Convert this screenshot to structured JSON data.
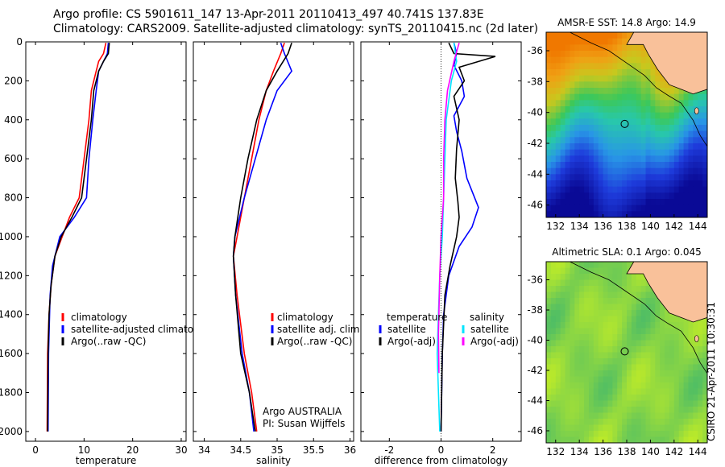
{
  "header": {
    "line1": "Argo profile: CS 5901611_147 13-Apr-2011 20110413_497 40.741S 137.83E",
    "line2": "Climatology: CARS2009. Satellite-adjusted climatology: synTS_20110415.nc (2d later)"
  },
  "side_label": "CSIRO 21-Apr-2011 10:30:31",
  "colors": {
    "climatology": "#ff0000",
    "satellite": "#0000ff",
    "argo": "#000000",
    "satellite_diff": "#00e5ff",
    "argo_diff": "#ff00ff"
  },
  "chart_data": [
    {
      "type": "line",
      "id": "temperature",
      "xlabel": "temperature",
      "ylabel": "",
      "xlim": [
        -2,
        31
      ],
      "ylim": [
        2050,
        0
      ],
      "xticks": [
        0,
        10,
        20,
        30
      ],
      "yticks": [
        0,
        200,
        400,
        600,
        800,
        1000,
        1200,
        1400,
        1600,
        1800,
        2000
      ],
      "legend": [
        "climatology",
        "satellite-adjusted climatology",
        "Argo(..raw -QC)"
      ],
      "series": [
        {
          "name": "climatology",
          "color": "#ff0000",
          "x": [
            14.5,
            14.0,
            13.0,
            12.5,
            11.5,
            11.0,
            10.0,
            9.0,
            7.0,
            5.5,
            4.0,
            3.2,
            2.8,
            2.5,
            2.4
          ],
          "y": [
            5,
            60,
            100,
            150,
            250,
            400,
            600,
            800,
            900,
            1000,
            1100,
            1250,
            1400,
            1600,
            2000
          ]
        },
        {
          "name": "satellite-adjusted climatology",
          "color": "#0000ff",
          "x": [
            15.0,
            14.8,
            14.0,
            13.0,
            12.5,
            11.8,
            11.0,
            10.5,
            8.0,
            5.0,
            3.5,
            3.0,
            2.7,
            2.6
          ],
          "y": [
            5,
            60,
            100,
            150,
            250,
            400,
            600,
            800,
            900,
            1000,
            1150,
            1300,
            1600,
            2000
          ]
        },
        {
          "name": "Argo(..raw -QC)",
          "color": "#000000",
          "x": [
            15.2,
            15.0,
            14.0,
            13.0,
            12.0,
            11.5,
            10.5,
            9.5,
            7.5,
            5.3,
            4.0,
            3.2,
            2.8,
            2.6,
            2.5
          ],
          "y": [
            5,
            60,
            100,
            150,
            250,
            400,
            600,
            800,
            900,
            1000,
            1100,
            1250,
            1400,
            1600,
            2000
          ]
        }
      ]
    },
    {
      "type": "line",
      "id": "salinity",
      "xlabel": "salinity",
      "ylabel": "",
      "xlim": [
        33.85,
        36.05
      ],
      "ylim": [
        2050,
        0
      ],
      "xticks": [
        34,
        34.5,
        35,
        35.5,
        36
      ],
      "xticklabels": [
        "34",
        "34.5",
        "35",
        "35.5",
        "36"
      ],
      "legend": [
        "climatology",
        "satellite adj. clim.",
        "Argo(..raw -QC)"
      ],
      "annotation": [
        "Argo AUSTRALIA",
        "PI: Susan Wijffels"
      ],
      "series": [
        {
          "name": "climatology",
          "color": "#ff0000",
          "x": [
            35.1,
            35.05,
            34.95,
            34.85,
            34.75,
            34.65,
            34.55,
            34.45,
            34.4,
            34.45,
            34.55,
            34.65,
            34.72
          ],
          "y": [
            5,
            60,
            150,
            250,
            400,
            600,
            800,
            1000,
            1100,
            1300,
            1600,
            1800,
            2000
          ]
        },
        {
          "name": "satellite adj. clim.",
          "color": "#0000ff",
          "x": [
            35.05,
            35.1,
            35.2,
            35.0,
            34.85,
            34.7,
            34.55,
            34.42,
            34.4,
            34.43,
            34.52,
            34.62,
            34.68
          ],
          "y": [
            5,
            60,
            150,
            250,
            400,
            600,
            800,
            1000,
            1100,
            1300,
            1600,
            1800,
            2000
          ]
        },
        {
          "name": "Argo(..raw -QC)",
          "color": "#000000",
          "x": [
            35.2,
            35.15,
            35.0,
            34.85,
            34.72,
            34.6,
            34.5,
            34.42,
            34.4,
            34.43,
            34.5,
            34.62,
            34.7
          ],
          "y": [
            5,
            60,
            150,
            250,
            400,
            600,
            800,
            1000,
            1100,
            1300,
            1600,
            1800,
            2000
          ]
        }
      ]
    },
    {
      "type": "line",
      "id": "difference",
      "xlabel": "difference from climatology",
      "ylabel": "",
      "xlim": [
        -3.1,
        3.1
      ],
      "ylim": [
        2050,
        0
      ],
      "xticks": [
        -2,
        0,
        2
      ],
      "legend_groups": [
        {
          "title": "temperature",
          "items": [
            "satellite",
            "Argo(-adj)"
          ]
        },
        {
          "title": "salinity",
          "items": [
            "satellite",
            "Argo(-adj)"
          ]
        }
      ],
      "series": [
        {
          "name": "satellite",
          "group": "temperature",
          "color": "#0000ff",
          "x": [
            0.5,
            0.6,
            0.5,
            0.8,
            0.9,
            0.5,
            0.6,
            0.8,
            1.0,
            1.3,
            1.45,
            1.2,
            0.7,
            0.3,
            0.1,
            0.05,
            0.0
          ],
          "y": [
            5,
            60,
            120,
            200,
            280,
            380,
            460,
            560,
            700,
            800,
            850,
            950,
            1050,
            1200,
            1400,
            1600,
            2000
          ]
        },
        {
          "name": "Argo(-adj)",
          "group": "temperature",
          "color": "#000000",
          "x": [
            0.3,
            0.5,
            2.1,
            0.7,
            0.9,
            0.5,
            0.7,
            0.6,
            0.55,
            0.65,
            0.7,
            0.6,
            0.35,
            0.15,
            0.05,
            0.0
          ],
          "y": [
            5,
            60,
            75,
            130,
            200,
            280,
            400,
            550,
            700,
            820,
            900,
            1000,
            1150,
            1300,
            1600,
            2000
          ]
        },
        {
          "name": "satellite",
          "group": "salinity",
          "color": "#00e5ff",
          "x": [
            0.5,
            0.6,
            0.4,
            0.3,
            0.2,
            0.15,
            0.1,
            0.05,
            -0.05,
            -0.1,
            -0.15,
            -0.1,
            -0.05
          ],
          "y": [
            5,
            100,
            200,
            300,
            400,
            600,
            800,
            1000,
            1200,
            1400,
            1600,
            1800,
            2000
          ]
        },
        {
          "name": "Argo(-adj)",
          "group": "salinity",
          "color": "#ff00ff",
          "x": [
            0.7,
            0.5,
            0.25,
            0.15,
            0.1,
            0.1,
            0.0,
            -0.05,
            -0.1,
            -0.08
          ],
          "y": [
            5,
            100,
            250,
            400,
            600,
            800,
            1000,
            1200,
            1500,
            1700
          ]
        }
      ]
    },
    {
      "type": "heatmap",
      "id": "sst_map",
      "title": "AMSR-E SST: 14.8 Argo: 14.9",
      "xlim": [
        131.2,
        144.8
      ],
      "ylim": [
        -46.8,
        -34.8
      ],
      "xticks": [
        132,
        134,
        136,
        138,
        140,
        142,
        144
      ],
      "yticks": [
        -36,
        -38,
        -40,
        -42,
        -44,
        -46
      ],
      "marker": {
        "lon": 137.83,
        "lat": -40.741
      }
    },
    {
      "type": "heatmap",
      "id": "sla_map",
      "title": "Altimetric SLA: 0.1 Argo: 0.045",
      "xlim": [
        131.2,
        144.8
      ],
      "ylim": [
        -46.8,
        -34.8
      ],
      "xticks": [
        132,
        134,
        136,
        138,
        140,
        142,
        144
      ],
      "yticks": [
        -36,
        -38,
        -40,
        -42,
        -44,
        -46
      ],
      "marker": {
        "lon": 137.83,
        "lat": -40.741
      }
    }
  ]
}
